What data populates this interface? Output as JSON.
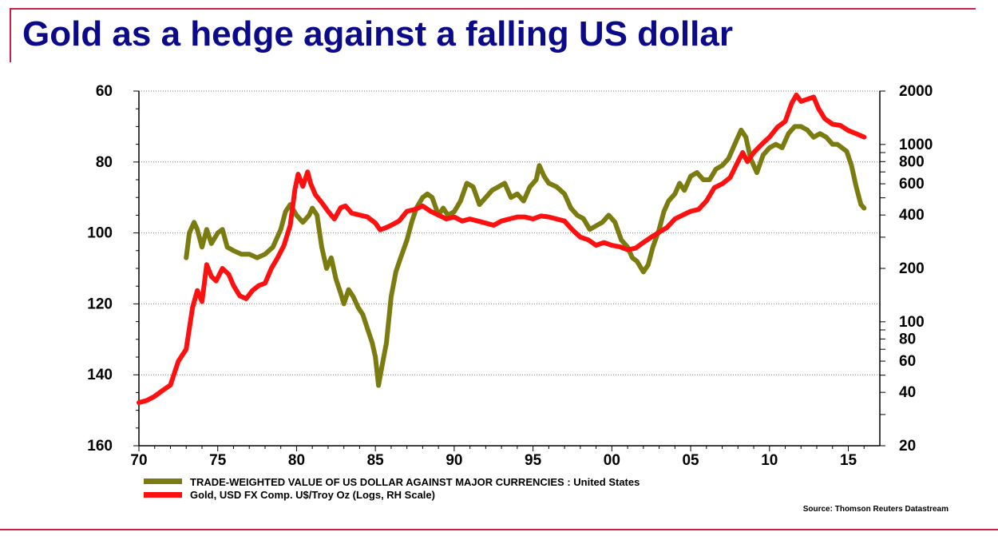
{
  "page": {
    "title": "Gold as a hedge against a falling US dollar",
    "source": "Source: Thomson Reuters Datastream"
  },
  "colors": {
    "title": "#0b0b8a",
    "accent_rule": "#cc1f4a",
    "dollar_series": "#7b7c10",
    "gold_series": "#ff1010"
  },
  "chart_data": {
    "type": "line",
    "title": "",
    "xlabel": "",
    "x_tick_labels": [
      "70",
      "75",
      "80",
      "85",
      "90",
      "95",
      "00",
      "05",
      "10",
      "15"
    ],
    "xlim": [
      1970,
      2017
    ],
    "y_left": {
      "scale": "linear",
      "inverted": true,
      "lim": [
        60,
        160
      ],
      "tick_labels": [
        "60",
        "80",
        "100",
        "120",
        "140",
        "160"
      ]
    },
    "y_right": {
      "scale": "log",
      "lim": [
        20,
        2000
      ],
      "tick_labels": [
        "2000",
        "1000",
        "800",
        "600",
        "400",
        "200",
        "100",
        "80",
        "60",
        "40",
        "20"
      ]
    },
    "grid": {
      "horizontal_dotted_at": [
        60,
        80,
        100,
        120,
        140
      ]
    },
    "legend_placement": "bottom",
    "series": [
      {
        "name": "TRADE-WEIGHTED VALUE OF US DOLLAR AGAINST MAJOR CURRENCIES : United States",
        "axis": "left",
        "x": [
          1973.0,
          1973.2,
          1973.5,
          1973.7,
          1974.0,
          1974.3,
          1974.6,
          1975.0,
          1975.3,
          1975.6,
          1976.0,
          1976.5,
          1977.0,
          1977.5,
          1978.0,
          1978.5,
          1979.0,
          1979.3,
          1979.6,
          1980.0,
          1980.4,
          1980.8,
          1981.0,
          1981.3,
          1981.6,
          1981.9,
          1982.2,
          1982.5,
          1982.8,
          1983.0,
          1983.3,
          1983.6,
          1983.9,
          1984.2,
          1984.5,
          1984.8,
          1985.0,
          1985.2,
          1985.4,
          1985.7,
          1986.0,
          1986.3,
          1986.6,
          1987.0,
          1987.3,
          1987.6,
          1988.0,
          1988.3,
          1988.6,
          1989.0,
          1989.3,
          1989.6,
          1990.0,
          1990.4,
          1990.8,
          1991.2,
          1991.6,
          1992.0,
          1992.4,
          1992.8,
          1993.2,
          1993.6,
          1994.0,
          1994.4,
          1994.8,
          1995.2,
          1995.4,
          1995.7,
          1996.0,
          1996.5,
          1997.0,
          1997.4,
          1997.8,
          1998.2,
          1998.6,
          1999.0,
          1999.4,
          1999.8,
          2000.2,
          2000.6,
          2001.0,
          2001.3,
          2001.6,
          2002.0,
          2002.3,
          2002.6,
          2003.0,
          2003.3,
          2003.6,
          2004.0,
          2004.3,
          2004.6,
          2005.0,
          2005.4,
          2005.8,
          2006.2,
          2006.6,
          2007.0,
          2007.4,
          2007.8,
          2008.2,
          2008.5,
          2008.8,
          2009.2,
          2009.6,
          2010.0,
          2010.4,
          2010.8,
          2011.2,
          2011.6,
          2012.0,
          2012.4,
          2012.8,
          2013.2,
          2013.6,
          2014.0,
          2014.3,
          2014.6,
          2014.9,
          2015.2,
          2015.5,
          2015.8,
          2016.0
        ],
        "values": [
          107,
          100,
          97,
          99,
          104,
          99,
          103,
          100,
          99,
          104,
          105,
          106,
          106,
          107,
          106,
          104,
          99,
          94,
          92,
          95,
          97,
          95,
          93,
          95,
          104,
          110,
          107,
          113,
          117,
          120,
          116,
          118,
          121,
          123,
          127,
          131,
          135,
          143,
          138,
          131,
          118,
          111,
          107,
          102,
          97,
          93,
          90,
          89,
          90,
          95,
          93,
          95,
          94,
          91,
          86,
          87,
          92,
          90,
          88,
          87,
          86,
          90,
          89,
          91,
          87,
          85,
          81,
          84,
          86,
          87,
          89,
          93,
          95,
          96,
          99,
          98,
          97,
          95,
          97,
          102,
          104,
          107,
          108,
          111,
          109,
          104,
          99,
          94,
          91,
          89,
          86,
          88,
          84,
          83,
          85,
          85,
          82,
          81,
          79,
          75,
          71,
          73,
          79,
          83,
          78,
          76,
          75,
          76,
          72,
          70,
          70,
          71,
          73,
          72,
          73,
          75,
          75,
          76,
          77,
          81,
          87,
          92,
          93
        ]
      },
      {
        "name": "Gold, USD FX Comp. U$/Troy Oz (Logs, RH Scale)",
        "axis": "right",
        "x": [
          1970.0,
          1970.5,
          1971.0,
          1971.5,
          1972.0,
          1972.5,
          1973.0,
          1973.4,
          1973.7,
          1974.0,
          1974.3,
          1974.6,
          1974.9,
          1975.3,
          1975.7,
          1976.0,
          1976.4,
          1976.8,
          1977.2,
          1977.6,
          1978.0,
          1978.4,
          1978.8,
          1979.2,
          1979.6,
          1979.9,
          1980.1,
          1980.4,
          1980.7,
          1980.9,
          1981.2,
          1981.6,
          1982.0,
          1982.4,
          1982.8,
          1983.1,
          1983.5,
          1984.0,
          1984.5,
          1985.0,
          1985.3,
          1985.7,
          1986.0,
          1986.5,
          1987.0,
          1987.5,
          1988.0,
          1988.5,
          1989.0,
          1989.5,
          1990.0,
          1990.5,
          1991.0,
          1991.5,
          1992.0,
          1992.5,
          1993.0,
          1993.5,
          1994.0,
          1994.5,
          1995.0,
          1995.5,
          1996.0,
          1996.5,
          1997.0,
          1997.5,
          1998.0,
          1998.5,
          1999.0,
          1999.5,
          2000.0,
          2000.5,
          2001.0,
          2001.5,
          2002.0,
          2002.5,
          2003.0,
          2003.5,
          2004.0,
          2004.5,
          2005.0,
          2005.5,
          2006.0,
          2006.5,
          2007.0,
          2007.5,
          2008.0,
          2008.3,
          2008.6,
          2009.0,
          2009.5,
          2010.0,
          2010.5,
          2011.0,
          2011.4,
          2011.7,
          2012.0,
          2012.4,
          2012.8,
          2013.1,
          2013.5,
          2014.0,
          2014.5,
          2015.0,
          2015.5,
          2016.0
        ],
        "values": [
          35,
          36,
          38,
          41,
          44,
          60,
          70,
          120,
          150,
          130,
          210,
          180,
          170,
          200,
          185,
          160,
          140,
          135,
          150,
          160,
          165,
          200,
          230,
          270,
          350,
          560,
          680,
          580,
          700,
          600,
          520,
          470,
          420,
          380,
          440,
          450,
          410,
          400,
          390,
          360,
          330,
          340,
          350,
          370,
          420,
          430,
          450,
          420,
          400,
          380,
          390,
          370,
          380,
          370,
          360,
          350,
          370,
          380,
          390,
          390,
          380,
          395,
          390,
          380,
          370,
          330,
          300,
          290,
          270,
          280,
          270,
          265,
          255,
          260,
          280,
          300,
          320,
          340,
          380,
          400,
          420,
          430,
          480,
          570,
          600,
          650,
          800,
          900,
          800,
          900,
          1000,
          1100,
          1250,
          1350,
          1700,
          1900,
          1750,
          1800,
          1850,
          1600,
          1400,
          1300,
          1280,
          1200,
          1150,
          1100
        ]
      }
    ]
  }
}
